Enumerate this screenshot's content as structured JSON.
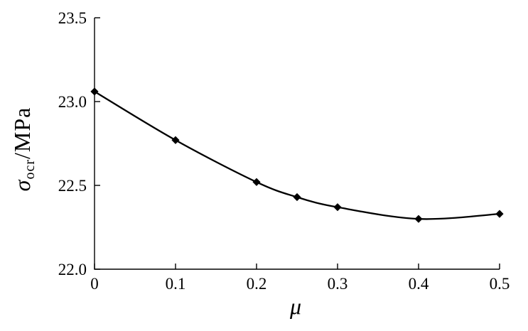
{
  "chart_data": {
    "type": "line",
    "x": [
      0,
      0.1,
      0.2,
      0.25,
      0.3,
      0.4,
      0.5
    ],
    "y": [
      23.06,
      22.77,
      22.52,
      22.43,
      22.37,
      22.3,
      22.33
    ],
    "title": "",
    "xlabel": "μ",
    "ylabel": {
      "symbol": "σ",
      "subscript": "ocr",
      "unit_suffix": "/MPa"
    },
    "xlim": [
      0,
      0.5
    ],
    "ylim": [
      22.0,
      23.5
    ],
    "xticks": {
      "values": [
        0,
        0.1,
        0.2,
        0.3,
        0.4,
        0.5
      ],
      "labels": [
        "0",
        "0.1",
        "0.2",
        "0.3",
        "0.4",
        "0.5"
      ]
    },
    "yticks": {
      "values": [
        22.0,
        22.5,
        23.0,
        23.5
      ],
      "labels": [
        "22.0",
        "22.5",
        "23.0",
        "23.5"
      ]
    },
    "grid": false,
    "legend": "none",
    "line_style": "smooth",
    "marker": "filled-diamond",
    "axis_color": "#000000",
    "curve_color": "#000000",
    "marker_color": "#000000",
    "background_color": "#ffffff"
  }
}
